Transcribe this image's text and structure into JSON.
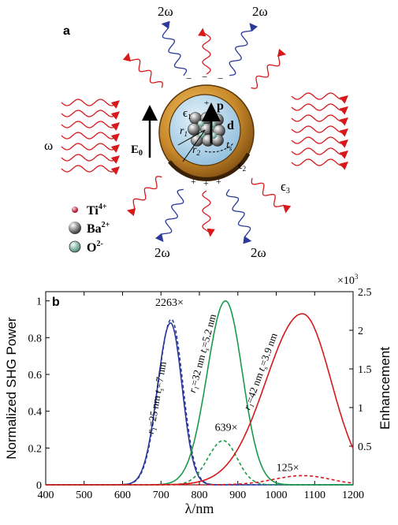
{
  "panel_a": {
    "label": "a",
    "incident_label": "ω",
    "harmonic_labels": [
      "2ω",
      "2ω",
      "2ω",
      "2ω"
    ],
    "field_label": "E",
    "field_sub": "0",
    "epsilon_inner": "ϵ",
    "epsilon_inner_sub": "1",
    "epsilon_shell": "ϵ",
    "epsilon_shell_sub": "2",
    "epsilon_outer": "ϵ",
    "epsilon_outer_sub": "3",
    "core_p": "p",
    "core_d": "d",
    "radius_r1": "r",
    "radius_r1_sub": "1",
    "radius_r2": "r",
    "radius_r2_sub": "2",
    "thickness": "t",
    "thickness_sub": "s",
    "legend": [
      {
        "symbol": "Ti",
        "charge": "4+",
        "color": "#c8102e"
      },
      {
        "symbol": "Ba",
        "charge": "2+",
        "color": "#555555"
      },
      {
        "symbol": "O",
        "charge": "2-",
        "color": "#7fb7a4"
      }
    ],
    "colors": {
      "incident": "#d7191c",
      "harmonic": "#2b3a9a",
      "shell": "#c98a2a",
      "core": "#a8cfe8"
    }
  },
  "chart_data": {
    "label": "b",
    "type": "line",
    "xlabel": "λ/nm",
    "ylabel": "Normalized SHG Power",
    "ylabel_right": "Enhancement",
    "right_axis_multiplier": "×10",
    "right_axis_exponent": "3",
    "xlim": [
      400,
      1200
    ],
    "ylim": [
      0,
      1.05
    ],
    "ylim_right": [
      0,
      2.5
    ],
    "xticks": [
      400,
      500,
      600,
      700,
      800,
      900,
      1000,
      1100,
      1200
    ],
    "yticks": [
      0,
      0.2,
      0.4,
      0.6,
      0.8,
      1
    ],
    "yticks_right": [
      0.5,
      1,
      1.5,
      2,
      2.5
    ],
    "series": [
      {
        "name": "r1=25 nm ts=7 nm",
        "color": "#2b3a9a",
        "style": "solid",
        "type": "gaussian",
        "center": 725,
        "width_left": 34,
        "width_right": 30,
        "peak": 0.88
      },
      {
        "name": "r1=25 nm ts=7 nm",
        "color": "#2b3a9a",
        "style": "dashed",
        "type": "gaussian",
        "center": 727,
        "width_left": 34,
        "width_right": 30,
        "peak": 0.9
      },
      {
        "name": "r1=32 nm ts=5.2 nm",
        "color": "#1a9a4a",
        "style": "solid",
        "type": "gaussian",
        "center": 868,
        "width_left": 48,
        "width_right": 44,
        "peak": 1.0
      },
      {
        "name": "r1=32 nm ts=5.2 nm",
        "color": "#1a9a4a",
        "style": "dashed",
        "type": "gaussian",
        "center": 862,
        "width_left": 40,
        "width_right": 36,
        "peak": 0.24
      },
      {
        "name": "r1=42 nm ts=3.9 nm",
        "color": "#d7191c",
        "style": "solid",
        "type": "gaussian",
        "center": 1068,
        "width_left": 95,
        "width_right": 75,
        "peak": 0.93
      },
      {
        "name": "r1=42 nm ts=3.9 nm",
        "color": "#d7191c",
        "style": "dashed",
        "type": "gaussian",
        "center": 1070,
        "width_left": 75,
        "width_right": 70,
        "peak": 0.05
      }
    ],
    "annotations": {
      "peak_blue": "2263×",
      "peak_green": "639×",
      "peak_red": "125×"
    },
    "curve_labels": [
      {
        "r": "r",
        "r_sub": "1",
        "r_val": "=25 nm ",
        "t": "t",
        "t_sub": "s",
        "t_val": "=7 nm"
      },
      {
        "r": "r",
        "r_sub": "1",
        "r_val": "=32 nm ",
        "t": "t",
        "t_sub": "s",
        "t_val": "=5.2 nm"
      },
      {
        "r": "r",
        "r_sub": "1",
        "r_val": "=42 nm ",
        "t": "t",
        "t_sub": "s",
        "t_val": "=3.9 nm"
      }
    ]
  }
}
